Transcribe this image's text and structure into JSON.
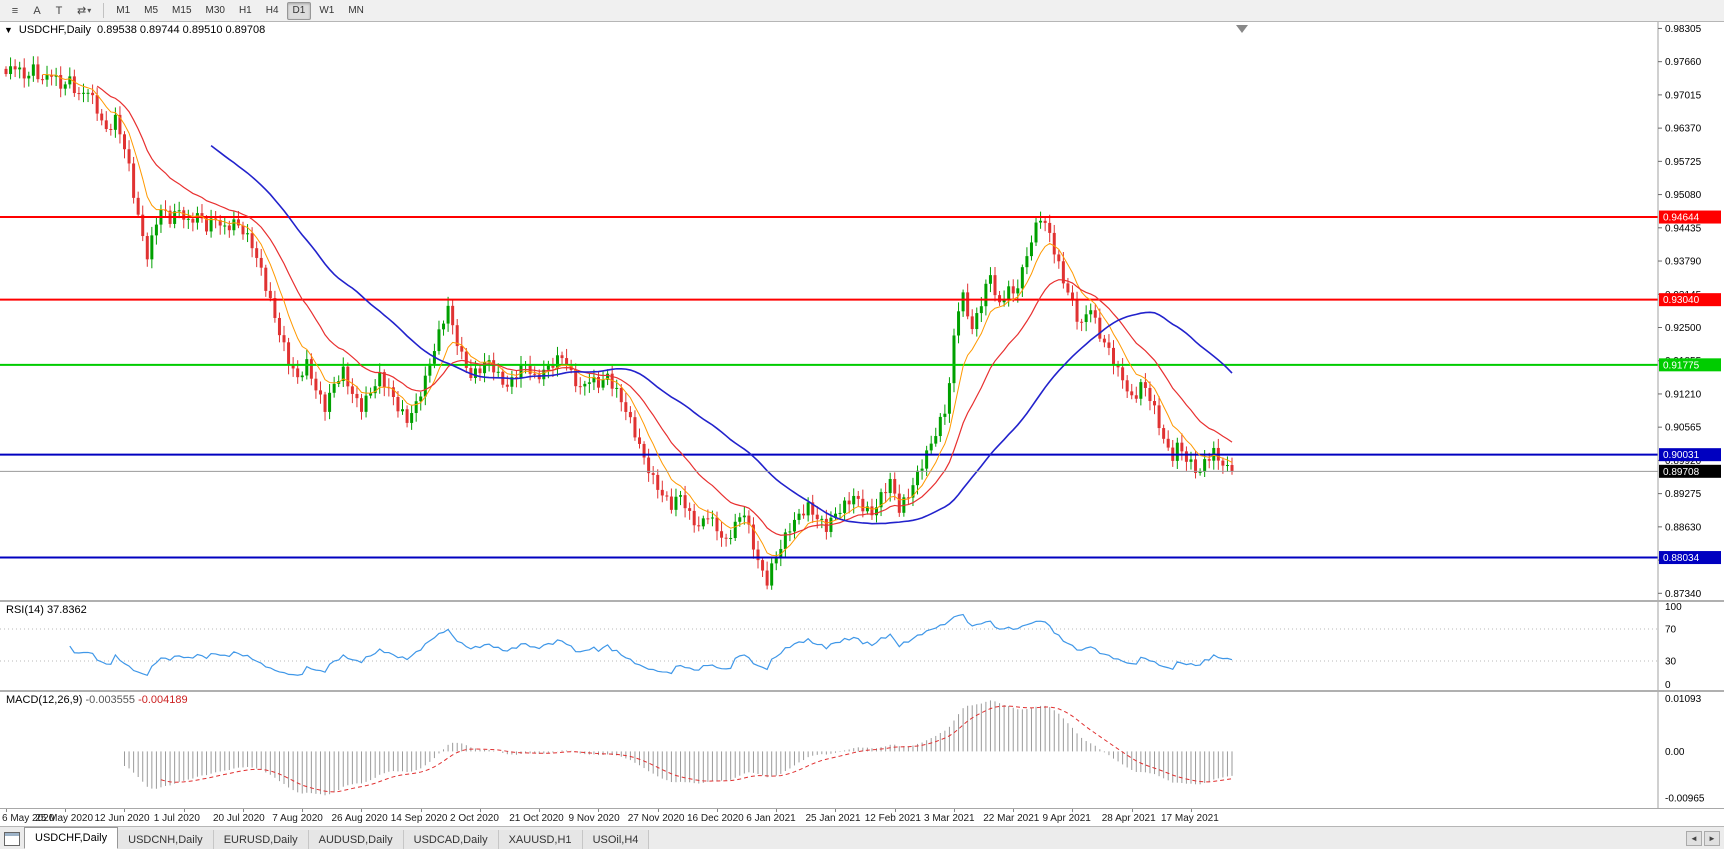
{
  "toolbar": {
    "icon_buttons": [
      {
        "name": "chart-bars-icon",
        "glyph": "≡"
      },
      {
        "name": "cursor-tool-icon",
        "glyph": "A"
      },
      {
        "name": "text-tool-icon",
        "glyph": "T"
      },
      {
        "name": "templates-icon",
        "glyph": "⇄"
      }
    ],
    "dropdown_caret": "▾",
    "timeframes": [
      "M1",
      "M5",
      "M15",
      "M30",
      "H1",
      "H4",
      "D1",
      "W1",
      "MN"
    ],
    "active_timeframe": "D1"
  },
  "chart_header": {
    "one_click_glyph": "▼",
    "symbol_title": "USDCHF,Daily",
    "ohlc": "0.89538 0.89744 0.89510 0.89708"
  },
  "price_axis": {
    "ticks": [
      "0.98305",
      "0.97660",
      "0.97015",
      "0.96370",
      "0.95725",
      "0.95080",
      "0.94435",
      "0.93790",
      "0.93145",
      "0.92500",
      "0.91855",
      "0.91210",
      "0.90565",
      "0.89920",
      "0.89275",
      "0.88630",
      "0.87985",
      "0.87340"
    ]
  },
  "rsi_pane": {
    "label": "RSI(14) 37.8362",
    "axis_ticks": [
      {
        "text": "100",
        "value": 100
      },
      {
        "text": "70",
        "value": 70
      },
      {
        "text": "30",
        "value": 30
      },
      {
        "text": "0",
        "value": 0
      }
    ],
    "dotted_levels": [
      70,
      30
    ]
  },
  "macd_pane": {
    "name": "MACD(12,26,9)",
    "main_value": "-0.003555",
    "signal_value": "-0.004189",
    "axis_ticks": [
      {
        "text": "0.01093",
        "value": 0.01093
      },
      {
        "text": "0.00",
        "value": 0.0
      },
      {
        "text": "-0.00965",
        "value": -0.00965
      }
    ]
  },
  "tabs": [
    {
      "label": "USDCHF,Daily",
      "active": true
    },
    {
      "label": "USDCNH,Daily",
      "active": false
    },
    {
      "label": "EURUSD,Daily",
      "active": false
    },
    {
      "label": "AUDUSD,Daily",
      "active": false
    },
    {
      "label": "USDCAD,Daily",
      "active": false
    },
    {
      "label": "XAUUSD,H1",
      "active": false
    },
    {
      "label": "USOil,H4",
      "active": false
    }
  ],
  "tabbar": {
    "scroll_left_glyph": "◄",
    "scroll_right_glyph": "►"
  },
  "colors": {
    "up": "#00a000",
    "down": "#e03232",
    "ma_fast": "#ff9900",
    "ma_mid": "#e83030",
    "ma_slow": "#2222cc",
    "rsi_line": "#3f97e8",
    "rsi_dotted": "#b8b8b8",
    "macd_hist": "#9a9a9a",
    "macd_signal": "#e03030",
    "bid_line": "#9a9a9a",
    "bid_tag": "#000000",
    "axis_border": "#a0a0a0"
  },
  "chart_data": {
    "type": "candlestick",
    "symbol": "USDCHF",
    "period": "Daily",
    "bars": 270,
    "price_range": [
      0.8721,
      0.9843
    ],
    "x_label_interval": 13,
    "x_labels": [
      "6 May 2020",
      "25 May 2020",
      "12 Jun 2020",
      "1 Jul 2020",
      "20 Jul 2020",
      "7 Aug 2020",
      "26 Aug 2020",
      "14 Sep 2020",
      "2 Oct 2020",
      "21 Oct 2020",
      "9 Nov 2020",
      "27 Nov 2020",
      "16 Dec 2020",
      "6 Jan 2021",
      "25 Jan 2021",
      "12 Feb 2021",
      "3 Mar 2021",
      "22 Mar 2021",
      "9 Apr 2021",
      "28 Apr 2021",
      "17 May 2021"
    ],
    "hlines": [
      {
        "value": 0.94644,
        "label": "0.94644",
        "color": "#ff0000"
      },
      {
        "value": 0.9304,
        "label": "0.93040",
        "color": "#ff0000"
      },
      {
        "value": 0.91775,
        "label": "0.91775",
        "color": "#00cc00"
      },
      {
        "value": 0.90031,
        "label": "0.90031",
        "color": "#0000c0"
      },
      {
        "value": 0.88034,
        "label": "0.88034",
        "color": "#0000c0"
      }
    ],
    "current_price": {
      "value": 0.89708,
      "label": "0.89708"
    },
    "overlays": [
      {
        "type": "ema",
        "period": 8,
        "color_key": "ma_fast",
        "width": 1
      },
      {
        "type": "ema",
        "period": 20,
        "color_key": "ma_mid",
        "width": 1.2
      },
      {
        "type": "sma",
        "period": 45,
        "color_key": "ma_slow",
        "width": 1.6
      }
    ],
    "rsi_period": 14,
    "macd_params": {
      "fast": 12,
      "slow": 26,
      "signal": 9
    },
    "macd_range": [
      -0.0105,
      0.0115
    ],
    "close_anchors": [
      [
        0,
        0.9742
      ],
      [
        2,
        0.976
      ],
      [
        4,
        0.9735
      ],
      [
        6,
        0.9752
      ],
      [
        8,
        0.9728
      ],
      [
        10,
        0.9745
      ],
      [
        12,
        0.9718
      ],
      [
        14,
        0.973
      ],
      [
        16,
        0.9698
      ],
      [
        18,
        0.9712
      ],
      [
        20,
        0.9672
      ],
      [
        22,
        0.963
      ],
      [
        24,
        0.9655
      ],
      [
        26,
        0.96
      ],
      [
        27,
        0.956
      ],
      [
        28,
        0.951
      ],
      [
        29,
        0.9465
      ],
      [
        30,
        0.9425
      ],
      [
        31,
        0.939
      ],
      [
        32,
        0.942
      ],
      [
        33,
        0.9455
      ],
      [
        34,
        0.948
      ],
      [
        36,
        0.946
      ],
      [
        38,
        0.9478
      ],
      [
        40,
        0.9452
      ],
      [
        42,
        0.947
      ],
      [
        44,
        0.9445
      ],
      [
        46,
        0.9462
      ],
      [
        48,
        0.944
      ],
      [
        50,
        0.9455
      ],
      [
        52,
        0.9438
      ],
      [
        54,
        0.941
      ],
      [
        56,
        0.936
      ],
      [
        58,
        0.93
      ],
      [
        60,
        0.924
      ],
      [
        62,
        0.9185
      ],
      [
        64,
        0.915
      ],
      [
        66,
        0.918
      ],
      [
        68,
        0.913
      ],
      [
        70,
        0.9095
      ],
      [
        72,
        0.914
      ],
      [
        74,
        0.9165
      ],
      [
        76,
        0.912
      ],
      [
        78,
        0.9095
      ],
      [
        80,
        0.9125
      ],
      [
        82,
        0.9155
      ],
      [
        84,
        0.913
      ],
      [
        86,
        0.9095
      ],
      [
        88,
        0.907
      ],
      [
        90,
        0.91
      ],
      [
        92,
        0.915
      ],
      [
        94,
        0.921
      ],
      [
        96,
        0.9265
      ],
      [
        97,
        0.929
      ],
      [
        98,
        0.925
      ],
      [
        100,
        0.9195
      ],
      [
        102,
        0.9155
      ],
      [
        104,
        0.917
      ],
      [
        106,
        0.9185
      ],
      [
        108,
        0.9155
      ],
      [
        110,
        0.9135
      ],
      [
        112,
        0.916
      ],
      [
        114,
        0.918
      ],
      [
        116,
        0.915
      ],
      [
        118,
        0.9165
      ],
      [
        120,
        0.918
      ],
      [
        122,
        0.9195
      ],
      [
        124,
        0.916
      ],
      [
        126,
        0.913
      ],
      [
        128,
        0.915
      ],
      [
        130,
        0.914
      ],
      [
        132,
        0.9155
      ],
      [
        134,
        0.9125
      ],
      [
        136,
        0.909
      ],
      [
        138,
        0.9045
      ],
      [
        140,
        0.8995
      ],
      [
        142,
        0.8955
      ],
      [
        144,
        0.8925
      ],
      [
        146,
        0.8905
      ],
      [
        148,
        0.8925
      ],
      [
        150,
        0.8885
      ],
      [
        152,
        0.8862
      ],
      [
        154,
        0.8888
      ],
      [
        156,
        0.8858
      ],
      [
        158,
        0.8832
      ],
      [
        160,
        0.8868
      ],
      [
        162,
        0.8892
      ],
      [
        164,
        0.8825
      ],
      [
        166,
        0.8772
      ],
      [
        167,
        0.8758
      ],
      [
        168,
        0.8785
      ],
      [
        170,
        0.8825
      ],
      [
        172,
        0.8862
      ],
      [
        174,
        0.8885
      ],
      [
        176,
        0.8902
      ],
      [
        178,
        0.888
      ],
      [
        180,
        0.8862
      ],
      [
        182,
        0.8888
      ],
      [
        184,
        0.8905
      ],
      [
        186,
        0.8922
      ],
      [
        188,
        0.8902
      ],
      [
        190,
        0.8888
      ],
      [
        192,
        0.8922
      ],
      [
        194,
        0.8952
      ],
      [
        196,
        0.8898
      ],
      [
        198,
        0.8925
      ],
      [
        200,
        0.8965
      ],
      [
        202,
        0.9005
      ],
      [
        204,
        0.9045
      ],
      [
        206,
        0.909
      ],
      [
        207,
        0.914
      ],
      [
        208,
        0.923
      ],
      [
        209,
        0.929
      ],
      [
        210,
        0.931
      ],
      [
        211,
        0.9275
      ],
      [
        212,
        0.925
      ],
      [
        213,
        0.927
      ],
      [
        214,
        0.93
      ],
      [
        215,
        0.933
      ],
      [
        216,
        0.935
      ],
      [
        217,
        0.932
      ],
      [
        218,
        0.929
      ],
      [
        219,
        0.931
      ],
      [
        220,
        0.933
      ],
      [
        221,
        0.931
      ],
      [
        222,
        0.9335
      ],
      [
        223,
        0.936
      ],
      [
        224,
        0.939
      ],
      [
        225,
        0.942
      ],
      [
        226,
        0.9445
      ],
      [
        227,
        0.9465
      ],
      [
        228,
        0.945
      ],
      [
        229,
        0.943
      ],
      [
        230,
        0.94
      ],
      [
        231,
        0.937
      ],
      [
        232,
        0.934
      ],
      [
        233,
        0.932
      ],
      [
        234,
        0.9295
      ],
      [
        235,
        0.927
      ],
      [
        236,
        0.9255
      ],
      [
        237,
        0.9275
      ],
      [
        238,
        0.929
      ],
      [
        239,
        0.926
      ],
      [
        240,
        0.9235
      ],
      [
        241,
        0.922
      ],
      [
        242,
        0.9205
      ],
      [
        243,
        0.9185
      ],
      [
        244,
        0.9165
      ],
      [
        245,
        0.915
      ],
      [
        246,
        0.913
      ],
      [
        247,
        0.911
      ],
      [
        248,
        0.912
      ],
      [
        249,
        0.914
      ],
      [
        250,
        0.913
      ],
      [
        251,
        0.9115
      ],
      [
        252,
        0.909
      ],
      [
        253,
        0.906
      ],
      [
        254,
        0.9035
      ],
      [
        255,
        0.901
      ],
      [
        256,
        0.9
      ],
      [
        257,
        0.902
      ],
      [
        258,
        0.901
      ],
      [
        259,
        0.8995
      ],
      [
        260,
        0.8985
      ],
      [
        261,
        0.8975
      ],
      [
        262,
        0.8968
      ],
      [
        263,
        0.899
      ],
      [
        264,
        0.9
      ],
      [
        265,
        0.9008
      ],
      [
        266,
        0.8995
      ],
      [
        267,
        0.8985
      ],
      [
        268,
        0.8975
      ],
      [
        269,
        0.8971
      ]
    ]
  }
}
